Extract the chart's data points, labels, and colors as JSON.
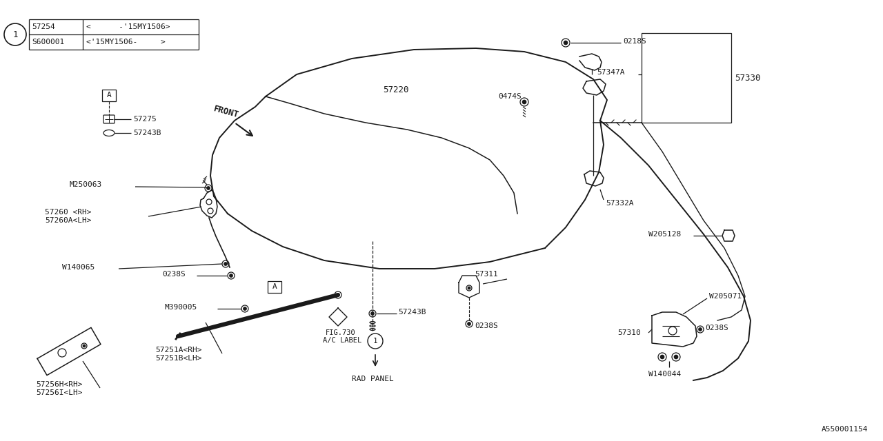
{
  "bg_color": "#ffffff",
  "line_color": "#1a1a1a",
  "table": {
    "circle_label": "1",
    "row1": [
      "57254",
      "<      -'15MY1506>"
    ],
    "row2": [
      "S600001",
      "<'15MY1506-     >"
    ]
  },
  "attribution": "A550001154"
}
